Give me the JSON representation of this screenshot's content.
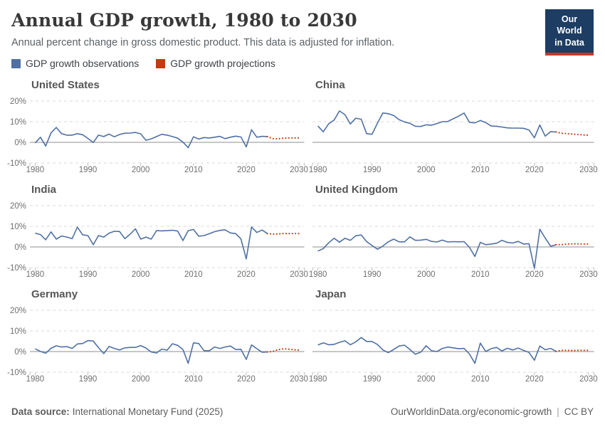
{
  "header": {
    "title": "Annual GDP growth, 1980 to 2030",
    "subtitle": "Annual percent change in gross domestic product. This data is adjusted for inflation.",
    "logo_line1": "Our World",
    "logo_line2": "in Data"
  },
  "legend": {
    "items": [
      {
        "label": "GDP growth observations",
        "color": "#4f70a4"
      },
      {
        "label": "GDP growth projections",
        "color": "#c03c0b"
      }
    ]
  },
  "colors": {
    "observation": "#4f70a4",
    "projection": "#c03c0b",
    "grid": "#d9d9d9",
    "zero_line": "#8f8f8f",
    "tick": "#c2c2c2",
    "tick_label": "#6f6f6f"
  },
  "chart_data": [
    {
      "type": "line",
      "title": "United States",
      "xlim": [
        1979,
        2031
      ],
      "ylim": [
        -10,
        20
      ],
      "yticks": [
        20,
        10,
        0,
        -10
      ],
      "xticks": [
        1980,
        1990,
        2000,
        2010,
        2020,
        2030
      ],
      "y_axis_labels": true,
      "ylabel_suffix": "%",
      "series": [
        {
          "name": "GDP growth observations",
          "x_start": 1980,
          "style": "solid",
          "color_key": "observation",
          "values": [
            -0.3,
            2.5,
            -1.8,
            4.6,
            7.2,
            4.2,
            3.5,
            3.5,
            4.2,
            3.7,
            1.9,
            -0.1,
            3.5,
            2.8,
            4.0,
            2.7,
            3.8,
            4.4,
            4.5,
            4.8,
            4.1,
            1.0,
            1.7,
            2.8,
            3.9,
            3.5,
            2.8,
            2.0,
            0.1,
            -2.6,
            2.7,
            1.6,
            2.3,
            2.1,
            2.5,
            2.9,
            1.8,
            2.5,
            3.0,
            2.6,
            -2.2,
            6.1,
            2.5,
            2.9,
            2.8
          ]
        },
        {
          "name": "GDP growth projections",
          "x_start": 2025,
          "style": "dotted",
          "color_key": "projection",
          "values": [
            1.8,
            1.7,
            2.0,
            2.1,
            2.1,
            2.1
          ]
        }
      ]
    },
    {
      "type": "line",
      "title": "China",
      "xlim": [
        1979,
        2031
      ],
      "ylim": [
        -10,
        20
      ],
      "yticks": [
        20,
        10,
        0,
        -10
      ],
      "xticks": [
        1980,
        1990,
        2000,
        2010,
        2020,
        2030
      ],
      "y_axis_labels": false,
      "ylabel_suffix": "%",
      "series": [
        {
          "name": "GDP growth observations",
          "x_start": 1980,
          "style": "solid",
          "color_key": "observation",
          "values": [
            7.9,
            5.1,
            9.0,
            10.8,
            15.2,
            13.4,
            8.9,
            11.7,
            11.2,
            4.2,
            3.9,
            9.3,
            14.2,
            13.9,
            13.0,
            11.0,
            9.9,
            9.2,
            7.8,
            7.7,
            8.5,
            8.3,
            9.1,
            10.0,
            10.1,
            11.4,
            12.7,
            14.2,
            9.7,
            9.4,
            10.6,
            9.6,
            7.9,
            7.8,
            7.4,
            7.0,
            6.9,
            6.9,
            6.8,
            6.0,
            2.2,
            8.4,
            3.0,
            5.2,
            5.0
          ]
        },
        {
          "name": "GDP growth projections",
          "x_start": 2025,
          "style": "dotted",
          "color_key": "projection",
          "values": [
            4.4,
            4.2,
            4.0,
            3.8,
            3.6,
            3.4
          ]
        }
      ]
    },
    {
      "type": "line",
      "title": "India",
      "xlim": [
        1979,
        2031
      ],
      "ylim": [
        -10,
        20
      ],
      "yticks": [
        20,
        10,
        0,
        -10
      ],
      "xticks": [
        1980,
        1990,
        2000,
        2010,
        2020,
        2030
      ],
      "y_axis_labels": true,
      "ylabel_suffix": "%",
      "series": [
        {
          "name": "GDP growth observations",
          "x_start": 1980,
          "style": "solid",
          "color_key": "observation",
          "values": [
            6.7,
            6.0,
            3.5,
            7.3,
            3.8,
            5.3,
            4.8,
            4.0,
            9.6,
            5.9,
            5.5,
            1.1,
            5.5,
            4.8,
            6.7,
            7.6,
            7.5,
            4.0,
            6.2,
            8.8,
            3.8,
            4.8,
            3.8,
            7.9,
            7.8,
            7.9,
            8.1,
            7.7,
            3.1,
            7.9,
            8.5,
            5.2,
            5.5,
            6.4,
            7.4,
            8.0,
            8.3,
            6.8,
            6.5,
            3.9,
            -5.8,
            9.7,
            7.0,
            8.2,
            6.5
          ]
        },
        {
          "name": "GDP growth projections",
          "x_start": 2025,
          "style": "dotted",
          "color_key": "projection",
          "values": [
            6.2,
            6.3,
            6.5,
            6.5,
            6.5,
            6.5
          ]
        }
      ]
    },
    {
      "type": "line",
      "title": "United Kingdom",
      "xlim": [
        1979,
        2031
      ],
      "ylim": [
        -10,
        20
      ],
      "yticks": [
        20,
        10,
        0,
        -10
      ],
      "xticks": [
        1980,
        1990,
        2000,
        2010,
        2020,
        2030
      ],
      "y_axis_labels": false,
      "ylabel_suffix": "%",
      "series": [
        {
          "name": "GDP growth observations",
          "x_start": 1980,
          "style": "solid",
          "color_key": "observation",
          "values": [
            -2.0,
            -0.8,
            2.0,
            4.2,
            2.3,
            4.2,
            3.2,
            5.4,
            5.8,
            2.6,
            0.7,
            -1.1,
            0.4,
            2.5,
            3.8,
            2.5,
            2.5,
            4.9,
            3.2,
            3.3,
            3.7,
            2.7,
            2.4,
            3.3,
            2.4,
            2.6,
            2.5,
            2.6,
            -0.2,
            -4.6,
            2.2,
            1.1,
            1.4,
            1.8,
            3.2,
            2.2,
            1.9,
            2.7,
            1.4,
            1.6,
            -10.3,
            8.6,
            4.3,
            0.3,
            1.1
          ]
        },
        {
          "name": "GDP growth projections",
          "x_start": 2025,
          "style": "dotted",
          "color_key": "projection",
          "values": [
            1.1,
            1.4,
            1.5,
            1.5,
            1.4,
            1.4
          ]
        }
      ]
    },
    {
      "type": "line",
      "title": "Germany",
      "xlim": [
        1979,
        2031
      ],
      "ylim": [
        -10,
        20
      ],
      "yticks": [
        20,
        10,
        0,
        -10
      ],
      "xticks": [
        1980,
        1990,
        2000,
        2010,
        2020,
        2030
      ],
      "y_axis_labels": true,
      "ylabel_suffix": "%",
      "series": [
        {
          "name": "GDP growth observations",
          "x_start": 1980,
          "style": "solid",
          "color_key": "observation",
          "values": [
            1.3,
            0.1,
            -0.8,
            1.6,
            2.8,
            2.2,
            2.4,
            1.5,
            3.7,
            3.9,
            5.3,
            5.1,
            1.9,
            -1.0,
            2.5,
            1.5,
            0.8,
            1.8,
            2.0,
            2.0,
            2.9,
            1.7,
            -0.2,
            -0.7,
            1.2,
            0.7,
            3.8,
            3.0,
            1.0,
            -5.7,
            4.2,
            3.9,
            0.4,
            0.4,
            2.2,
            1.5,
            2.2,
            2.7,
            1.0,
            1.1,
            -3.8,
            3.2,
            1.4,
            -0.3,
            -0.2
          ]
        },
        {
          "name": "GDP growth projections",
          "x_start": 2025,
          "style": "dotted",
          "color_key": "projection",
          "values": [
            0.0,
            0.9,
            1.3,
            1.2,
            0.9,
            0.7
          ]
        }
      ]
    },
    {
      "type": "line",
      "title": "Japan",
      "xlim": [
        1979,
        2031
      ],
      "ylim": [
        -10,
        20
      ],
      "yticks": [
        20,
        10,
        0,
        -10
      ],
      "xticks": [
        1980,
        1990,
        2000,
        2010,
        2020,
        2030
      ],
      "y_axis_labels": false,
      "ylabel_suffix": "%",
      "series": [
        {
          "name": "GDP growth observations",
          "x_start": 1980,
          "style": "solid",
          "color_key": "observation",
          "values": [
            3.2,
            4.2,
            3.3,
            3.5,
            4.5,
            5.2,
            3.3,
            4.7,
            6.8,
            4.9,
            4.9,
            3.4,
            0.8,
            -0.5,
            1.0,
            2.7,
            3.1,
            1.0,
            -1.3,
            -0.3,
            2.8,
            0.4,
            0.0,
            1.5,
            2.2,
            1.8,
            1.4,
            1.5,
            -1.2,
            -5.7,
            4.1,
            0.0,
            1.4,
            2.0,
            0.3,
            1.6,
            0.8,
            1.7,
            0.6,
            -0.4,
            -4.2,
            2.7,
            0.9,
            1.5,
            0.1
          ]
        },
        {
          "name": "GDP growth projections",
          "x_start": 2025,
          "style": "dotted",
          "color_key": "projection",
          "values": [
            0.6,
            0.6,
            0.5,
            0.6,
            0.6,
            0.6
          ]
        }
      ]
    }
  ],
  "footer": {
    "source_label": "Data source:",
    "source": "International Monetary Fund (2025)",
    "url": "OurWorldinData.org/economic-growth",
    "separator": "|",
    "license": "CC BY"
  }
}
